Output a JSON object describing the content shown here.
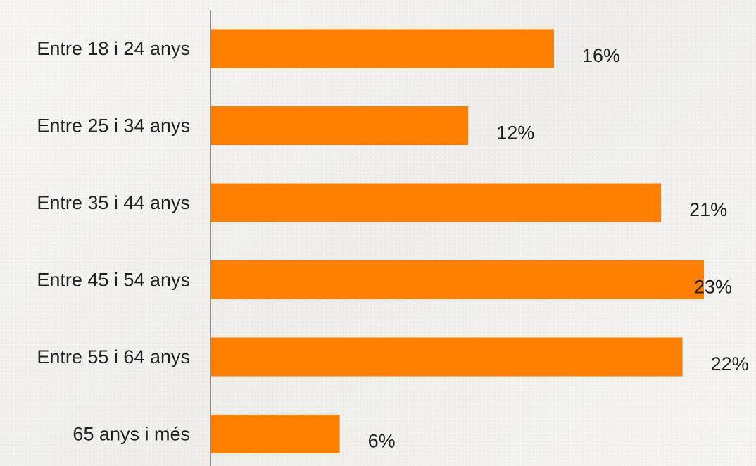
{
  "chart_data": {
    "type": "bar",
    "orientation": "horizontal",
    "categories": [
      "Entre 18 i 24 anys",
      "Entre 25 i 34 anys",
      "Entre 35 i 44 anys",
      "Entre 45 i 54 anys",
      "Entre 55 i 64 anys",
      "65 anys i més"
    ],
    "values": [
      16,
      12,
      21,
      23,
      22,
      6
    ],
    "value_labels": [
      "16%",
      "12%",
      "21%",
      "23%",
      "22%",
      "6%"
    ],
    "value_unit": "%",
    "title": "",
    "xlabel": "",
    "ylabel": "",
    "xlim": [
      0,
      23
    ],
    "grid": false,
    "legend": "none",
    "bar_color": "#ff8000",
    "axis_color": "#8a8a8a"
  }
}
